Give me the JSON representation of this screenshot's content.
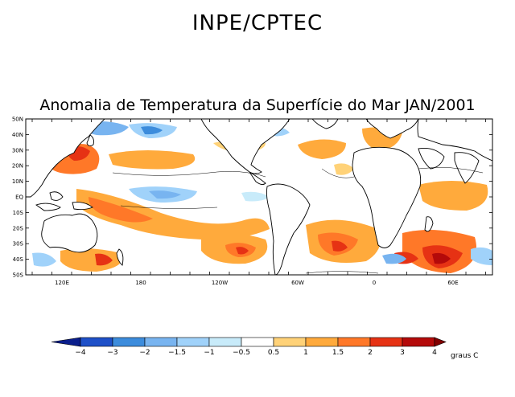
{
  "header": {
    "organization": "INPE/CPTEC"
  },
  "map": {
    "title": "Anomalia de Temperatura da Superfície do Mar JAN/2001",
    "lat_labels": [
      "50N",
      "40N",
      "30N",
      "20N",
      "10N",
      "EQ",
      "10S",
      "20S",
      "30S",
      "40S",
      "50S"
    ],
    "lon_labels": [
      "120E",
      "180",
      "120W",
      "60W",
      "0",
      "60E"
    ]
  },
  "colorbar": {
    "levels": [
      "-4",
      "-3",
      "-2",
      "-1.5",
      "-1",
      "-0.5",
      "0.5",
      "1",
      "1.5",
      "2",
      "3",
      "4"
    ],
    "colors": [
      "#0a1e8c",
      "#1e50c8",
      "#3c8cdc",
      "#78b4f0",
      "#a0d2fa",
      "#c8ebfa",
      "#ffffff",
      "#ffd278",
      "#ffaa3c",
      "#ff7828",
      "#e63214",
      "#b40a0a",
      "#820000"
    ],
    "unit_label": "graus C"
  }
}
